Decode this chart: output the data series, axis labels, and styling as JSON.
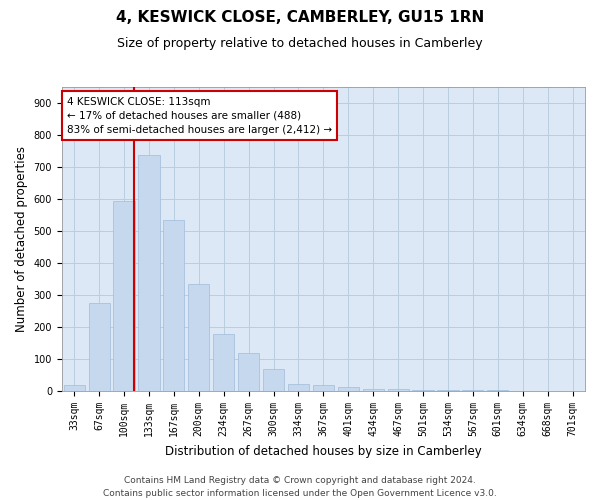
{
  "title": "4, KESWICK CLOSE, CAMBERLEY, GU15 1RN",
  "subtitle": "Size of property relative to detached houses in Camberley",
  "xlabel": "Distribution of detached houses by size in Camberley",
  "ylabel": "Number of detached properties",
  "categories": [
    "33sqm",
    "67sqm",
    "100sqm",
    "133sqm",
    "167sqm",
    "200sqm",
    "234sqm",
    "267sqm",
    "300sqm",
    "334sqm",
    "367sqm",
    "401sqm",
    "434sqm",
    "467sqm",
    "501sqm",
    "534sqm",
    "567sqm",
    "601sqm",
    "634sqm",
    "668sqm",
    "701sqm"
  ],
  "values": [
    20,
    275,
    595,
    740,
    535,
    335,
    178,
    118,
    68,
    22,
    18,
    12,
    8,
    7,
    5,
    4,
    4,
    5,
    2,
    1,
    1
  ],
  "bar_color": "#c5d8ed",
  "bar_edgecolor": "#a0bcd8",
  "bar_width": 0.85,
  "ylim": [
    0,
    950
  ],
  "yticks": [
    0,
    100,
    200,
    300,
    400,
    500,
    600,
    700,
    800,
    900
  ],
  "property_line_color": "#cc0000",
  "annotation_text": "4 KESWICK CLOSE: 113sqm\n← 17% of detached houses are smaller (488)\n83% of semi-detached houses are larger (2,412) →",
  "annotation_box_color": "#ffffff",
  "annotation_box_edgecolor": "#cc0000",
  "footer_line1": "Contains HM Land Registry data © Crown copyright and database right 2024.",
  "footer_line2": "Contains public sector information licensed under the Open Government Licence v3.0.",
  "background_color": "#ffffff",
  "plot_bg_color": "#dce8f5",
  "grid_color": "#b8cfe0",
  "title_fontsize": 11,
  "subtitle_fontsize": 9,
  "axis_label_fontsize": 8.5,
  "tick_fontsize": 7,
  "annotation_fontsize": 7.5,
  "footer_fontsize": 6.5
}
